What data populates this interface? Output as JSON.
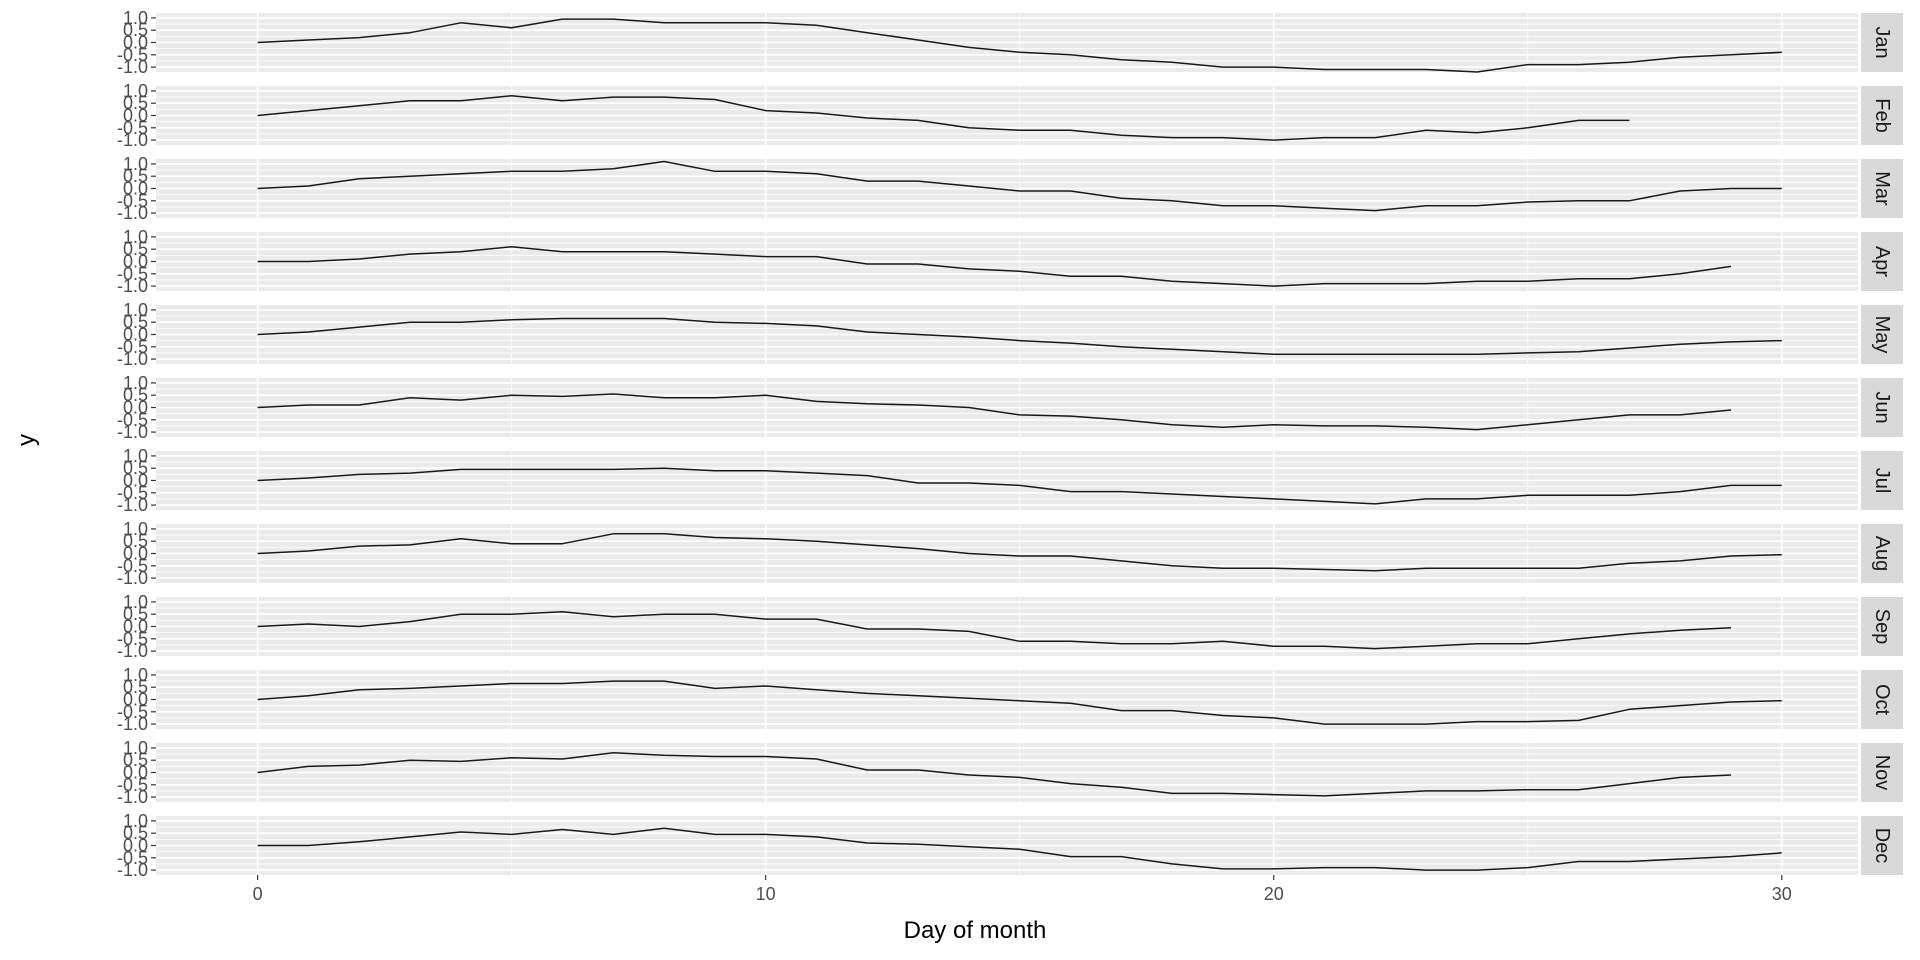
{
  "chart_data": {
    "type": "line",
    "title": "",
    "xlabel": "Day of month",
    "ylabel": "y",
    "xlim": [
      -2,
      31.5
    ],
    "ylim": [
      -1.2,
      1.2
    ],
    "x_ticks": [
      0,
      10,
      20,
      30
    ],
    "x_tick_labels": [
      "0",
      "10",
      "20",
      "30"
    ],
    "y_ticks": [
      -1.0,
      -0.5,
      0.0,
      0.5,
      1.0
    ],
    "y_tick_labels": [
      "-1.0",
      "-0.5",
      "0.0",
      "0.5",
      "1.0"
    ],
    "grid": true,
    "legend": "none",
    "colors": {
      "panel_bg": "#ebebeb",
      "grid": "#ffffff",
      "strip_bg": "#d9d9d9",
      "line": "#1a1a1a",
      "tick": "#333333",
      "tick_label": "#4d4d4d"
    },
    "panels": [
      {
        "label": "Jan",
        "x": [
          0,
          1,
          2,
          3,
          4,
          5,
          6,
          7,
          8,
          9,
          10,
          11,
          12,
          13,
          14,
          15,
          16,
          17,
          18,
          19,
          20,
          21,
          22,
          23,
          24,
          25,
          26,
          27,
          28,
          29,
          30
        ],
        "y": [
          0.0,
          0.1,
          0.2,
          0.4,
          0.8,
          0.6,
          0.95,
          0.95,
          0.8,
          0.8,
          0.8,
          0.7,
          0.4,
          0.1,
          -0.2,
          -0.4,
          -0.5,
          -0.7,
          -0.8,
          -1.0,
          -1.0,
          -1.1,
          -1.1,
          -1.1,
          -1.2,
          -0.9,
          -0.9,
          -0.8,
          -0.6,
          -0.5,
          -0.4
        ]
      },
      {
        "label": "Feb",
        "x": [
          0,
          1,
          2,
          3,
          4,
          5,
          6,
          7,
          8,
          9,
          10,
          11,
          12,
          13,
          14,
          15,
          16,
          17,
          18,
          19,
          20,
          21,
          22,
          23,
          24,
          25,
          26,
          27
        ],
        "y": [
          0.0,
          0.2,
          0.4,
          0.6,
          0.6,
          0.8,
          0.6,
          0.75,
          0.75,
          0.65,
          0.2,
          0.1,
          -0.1,
          -0.2,
          -0.5,
          -0.6,
          -0.6,
          -0.8,
          -0.9,
          -0.9,
          -1.0,
          -0.9,
          -0.9,
          -0.6,
          -0.7,
          -0.5,
          -0.2,
          -0.2
        ]
      },
      {
        "label": "Mar",
        "x": [
          0,
          1,
          2,
          3,
          4,
          5,
          6,
          7,
          8,
          9,
          10,
          11,
          12,
          13,
          14,
          15,
          16,
          17,
          18,
          19,
          20,
          21,
          22,
          23,
          24,
          25,
          26,
          27,
          28,
          29,
          30
        ],
        "y": [
          0.0,
          0.1,
          0.4,
          0.5,
          0.6,
          0.7,
          0.7,
          0.8,
          1.1,
          0.7,
          0.7,
          0.6,
          0.3,
          0.3,
          0.1,
          -0.1,
          -0.1,
          -0.4,
          -0.5,
          -0.7,
          -0.7,
          -0.8,
          -0.9,
          -0.7,
          -0.7,
          -0.55,
          -0.5,
          -0.5,
          -0.1,
          0.0,
          0.0
        ]
      },
      {
        "label": "Apr",
        "x": [
          0,
          1,
          2,
          3,
          4,
          5,
          6,
          7,
          8,
          9,
          10,
          11,
          12,
          13,
          14,
          15,
          16,
          17,
          18,
          19,
          20,
          21,
          22,
          23,
          24,
          25,
          26,
          27,
          28,
          29
        ],
        "y": [
          0.0,
          0.0,
          0.1,
          0.3,
          0.4,
          0.6,
          0.4,
          0.4,
          0.4,
          0.3,
          0.2,
          0.2,
          -0.1,
          -0.1,
          -0.3,
          -0.4,
          -0.6,
          -0.6,
          -0.8,
          -0.9,
          -1.0,
          -0.9,
          -0.9,
          -0.9,
          -0.8,
          -0.8,
          -0.7,
          -0.7,
          -0.5,
          -0.2
        ]
      },
      {
        "label": "May",
        "x": [
          0,
          1,
          2,
          3,
          4,
          5,
          6,
          7,
          8,
          9,
          10,
          11,
          12,
          13,
          14,
          15,
          16,
          17,
          18,
          19,
          20,
          21,
          22,
          23,
          24,
          25,
          26,
          27,
          28,
          29,
          30
        ],
        "y": [
          0.0,
          0.1,
          0.3,
          0.5,
          0.5,
          0.6,
          0.65,
          0.65,
          0.65,
          0.5,
          0.45,
          0.35,
          0.1,
          0.0,
          -0.1,
          -0.25,
          -0.35,
          -0.5,
          -0.6,
          -0.7,
          -0.8,
          -0.8,
          -0.8,
          -0.8,
          -0.8,
          -0.75,
          -0.7,
          -0.55,
          -0.4,
          -0.3,
          -0.25
        ]
      },
      {
        "label": "Jun",
        "x": [
          0,
          1,
          2,
          3,
          4,
          5,
          6,
          7,
          8,
          9,
          10,
          11,
          12,
          13,
          14,
          15,
          16,
          17,
          18,
          19,
          20,
          21,
          22,
          23,
          24,
          25,
          26,
          27,
          28,
          29
        ],
        "y": [
          0.0,
          0.1,
          0.1,
          0.4,
          0.3,
          0.5,
          0.45,
          0.55,
          0.4,
          0.4,
          0.5,
          0.25,
          0.15,
          0.1,
          0.0,
          -0.3,
          -0.35,
          -0.5,
          -0.7,
          -0.8,
          -0.7,
          -0.75,
          -0.75,
          -0.8,
          -0.9,
          -0.7,
          -0.5,
          -0.3,
          -0.3,
          -0.1
        ]
      },
      {
        "label": "Jul",
        "x": [
          0,
          1,
          2,
          3,
          4,
          5,
          6,
          7,
          8,
          9,
          10,
          11,
          12,
          13,
          14,
          15,
          16,
          17,
          18,
          19,
          20,
          21,
          22,
          23,
          24,
          25,
          26,
          27,
          28,
          29,
          30
        ],
        "y": [
          0.0,
          0.1,
          0.25,
          0.3,
          0.45,
          0.45,
          0.45,
          0.45,
          0.5,
          0.4,
          0.4,
          0.3,
          0.2,
          -0.1,
          -0.1,
          -0.2,
          -0.45,
          -0.45,
          -0.55,
          -0.65,
          -0.75,
          -0.85,
          -0.95,
          -0.75,
          -0.75,
          -0.6,
          -0.6,
          -0.6,
          -0.45,
          -0.2,
          -0.2
        ]
      },
      {
        "label": "Aug",
        "x": [
          0,
          1,
          2,
          3,
          4,
          5,
          6,
          7,
          8,
          9,
          10,
          11,
          12,
          13,
          14,
          15,
          16,
          17,
          18,
          19,
          20,
          21,
          22,
          23,
          24,
          25,
          26,
          27,
          28,
          29,
          30
        ],
        "y": [
          0.0,
          0.1,
          0.3,
          0.35,
          0.6,
          0.4,
          0.4,
          0.8,
          0.8,
          0.65,
          0.6,
          0.5,
          0.35,
          0.2,
          0.0,
          -0.1,
          -0.1,
          -0.3,
          -0.5,
          -0.6,
          -0.6,
          -0.65,
          -0.7,
          -0.6,
          -0.6,
          -0.6,
          -0.6,
          -0.4,
          -0.3,
          -0.1,
          -0.05
        ]
      },
      {
        "label": "Sep",
        "x": [
          0,
          1,
          2,
          3,
          4,
          5,
          6,
          7,
          8,
          9,
          10,
          11,
          12,
          13,
          14,
          15,
          16,
          17,
          18,
          19,
          20,
          21,
          22,
          23,
          24,
          25,
          26,
          27,
          28,
          29
        ],
        "y": [
          0.0,
          0.1,
          0.0,
          0.2,
          0.5,
          0.5,
          0.6,
          0.4,
          0.5,
          0.5,
          0.3,
          0.3,
          -0.1,
          -0.1,
          -0.2,
          -0.6,
          -0.6,
          -0.7,
          -0.7,
          -0.6,
          -0.8,
          -0.8,
          -0.9,
          -0.8,
          -0.7,
          -0.7,
          -0.5,
          -0.3,
          -0.15,
          -0.05
        ]
      },
      {
        "label": "Oct",
        "x": [
          0,
          1,
          2,
          3,
          4,
          5,
          6,
          7,
          8,
          9,
          10,
          11,
          12,
          13,
          14,
          15,
          16,
          17,
          18,
          19,
          20,
          21,
          22,
          23,
          24,
          25,
          26,
          27,
          28,
          29,
          30
        ],
        "y": [
          0.0,
          0.15,
          0.4,
          0.45,
          0.55,
          0.65,
          0.65,
          0.75,
          0.75,
          0.45,
          0.55,
          0.4,
          0.25,
          0.15,
          0.05,
          -0.05,
          -0.15,
          -0.45,
          -0.45,
          -0.65,
          -0.75,
          -1.0,
          -1.0,
          -1.0,
          -0.9,
          -0.9,
          -0.85,
          -0.4,
          -0.25,
          -0.1,
          -0.05
        ]
      },
      {
        "label": "Nov",
        "x": [
          0,
          1,
          2,
          3,
          4,
          5,
          6,
          7,
          8,
          9,
          10,
          11,
          12,
          13,
          14,
          15,
          16,
          17,
          18,
          19,
          20,
          21,
          22,
          23,
          24,
          25,
          26,
          27,
          28,
          29
        ],
        "y": [
          0.0,
          0.25,
          0.3,
          0.5,
          0.45,
          0.6,
          0.55,
          0.8,
          0.7,
          0.65,
          0.65,
          0.55,
          0.1,
          0.1,
          -0.1,
          -0.2,
          -0.45,
          -0.6,
          -0.85,
          -0.85,
          -0.9,
          -0.95,
          -0.85,
          -0.75,
          -0.75,
          -0.7,
          -0.7,
          -0.45,
          -0.2,
          -0.1
        ]
      },
      {
        "label": "Dec",
        "x": [
          0,
          1,
          2,
          3,
          4,
          5,
          6,
          7,
          8,
          9,
          10,
          11,
          12,
          13,
          14,
          15,
          16,
          17,
          18,
          19,
          20,
          21,
          22,
          23,
          24,
          25,
          26,
          27,
          28,
          29,
          30
        ],
        "y": [
          0.0,
          0.0,
          0.15,
          0.35,
          0.55,
          0.45,
          0.65,
          0.45,
          0.7,
          0.45,
          0.45,
          0.35,
          0.1,
          0.05,
          -0.05,
          -0.15,
          -0.45,
          -0.45,
          -0.75,
          -0.95,
          -0.95,
          -0.9,
          -0.9,
          -1.0,
          -1.0,
          -0.9,
          -0.65,
          -0.65,
          -0.55,
          -0.45,
          -0.3
        ]
      }
    ]
  }
}
